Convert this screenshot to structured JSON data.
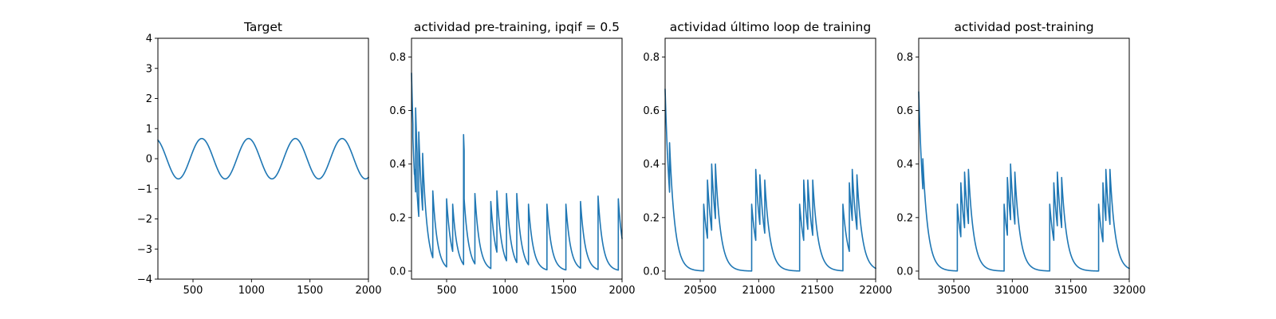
{
  "chart_data": [
    {
      "type": "line",
      "title": "Target",
      "xlim": [
        200,
        2000
      ],
      "ylim": [
        -4,
        4
      ],
      "xticks": [
        500,
        1000,
        1500,
        2000
      ],
      "xtick_labels": [
        "500",
        "1000",
        "1500",
        "2000"
      ],
      "yticks": [
        -4,
        -3,
        -2,
        -1,
        0,
        1,
        2,
        3,
        4
      ],
      "ytick_labels": [
        "−4",
        "−3",
        "−2",
        "−1",
        "0",
        "1",
        "2",
        "3",
        "4"
      ],
      "color": "#1f77b4",
      "series": [
        {
          "kind": "sine",
          "amplitude": 0.67,
          "period": 400,
          "phase_x": 175,
          "x_start": 200,
          "x_end": 2000
        }
      ]
    },
    {
      "type": "line",
      "title": "actividad pre-training, ipqif = 0.5",
      "xlim": [
        200,
        2000
      ],
      "ylim": [
        -0.03,
        0.87
      ],
      "xticks": [
        500,
        1000,
        1500,
        2000
      ],
      "xtick_labels": [
        "500",
        "1000",
        "1500",
        "2000"
      ],
      "yticks": [
        0,
        0.2,
        0.4,
        0.6,
        0.8
      ],
      "ytick_labels": [
        "0.0",
        "0.2",
        "0.4",
        "0.6",
        "0.8"
      ],
      "color": "#1f77b4",
      "series": [
        {
          "kind": "spikes",
          "x_start": 200,
          "x_end": 2000,
          "initial": 0.74,
          "tau": 40,
          "spikes": [
            [
              212,
              0.5
            ],
            [
              225,
              0.38
            ],
            [
              235,
              0.61
            ],
            [
              248,
              0.29
            ],
            [
              262,
              0.52
            ],
            [
              295,
              0.44
            ],
            [
              382,
              0.3
            ],
            [
              500,
              0.27
            ],
            [
              552,
              0.25
            ],
            [
              645,
              0.51
            ],
            [
              650,
              0.27
            ],
            [
              742,
              0.29
            ],
            [
              878,
              0.26
            ],
            [
              930,
              0.3
            ],
            [
              1012,
              0.29
            ],
            [
              1100,
              0.29
            ],
            [
              1200,
              0.25
            ],
            [
              1358,
              0.25
            ],
            [
              1520,
              0.25
            ],
            [
              1645,
              0.26
            ],
            [
              1795,
              0.28
            ],
            [
              1968,
              0.27
            ]
          ]
        }
      ]
    },
    {
      "type": "line",
      "title": "actividad último loop de training",
      "xlim": [
        20200,
        22000
      ],
      "ylim": [
        -0.03,
        0.87
      ],
      "xticks": [
        20500,
        21000,
        21500,
        22000
      ],
      "xtick_labels": [
        "20500",
        "21000",
        "21500",
        "22000"
      ],
      "yticks": [
        0,
        0.2,
        0.4,
        0.6,
        0.8
      ],
      "ytick_labels": [
        "0.0",
        "0.2",
        "0.4",
        "0.6",
        "0.8"
      ],
      "color": "#1f77b4",
      "series": [
        {
          "kind": "spikes",
          "x_start": 20200,
          "x_end": 22000,
          "initial": 0.68,
          "tau": 45,
          "spikes": [
            [
              20220,
              0.44
            ],
            [
              20238,
              0.48
            ],
            [
              20530,
              0.25
            ],
            [
              20562,
              0.34
            ],
            [
              20598,
              0.4
            ],
            [
              20630,
              0.4
            ],
            [
              20940,
              0.25
            ],
            [
              20975,
              0.38
            ],
            [
              21010,
              0.36
            ],
            [
              21052,
              0.34
            ],
            [
              21350,
              0.25
            ],
            [
              21385,
              0.34
            ],
            [
              21420,
              0.34
            ],
            [
              21462,
              0.34
            ],
            [
              21720,
              0.25
            ],
            [
              21775,
              0.33
            ],
            [
              21800,
              0.38
            ],
            [
              21840,
              0.36
            ]
          ]
        }
      ]
    },
    {
      "type": "line",
      "title": "actividad post-training",
      "xlim": [
        30200,
        32000
      ],
      "ylim": [
        -0.03,
        0.87
      ],
      "xticks": [
        30500,
        31000,
        31500,
        32000
      ],
      "xtick_labels": [
        "30500",
        "31000",
        "31500",
        "32000"
      ],
      "yticks": [
        0,
        0.2,
        0.4,
        0.6,
        0.8
      ],
      "ytick_labels": [
        "0.0",
        "0.2",
        "0.4",
        "0.6",
        "0.8"
      ],
      "color": "#1f77b4",
      "series": [
        {
          "kind": "spikes",
          "x_start": 30200,
          "x_end": 32000,
          "initial": 0.67,
          "tau": 45,
          "spikes": [
            [
              30235,
              0.42
            ],
            [
              30530,
              0.25
            ],
            [
              30560,
              0.33
            ],
            [
              30592,
              0.37
            ],
            [
              30625,
              0.38
            ],
            [
              30930,
              0.25
            ],
            [
              30958,
              0.35
            ],
            [
              30985,
              0.4
            ],
            [
              31022,
              0.37
            ],
            [
              31320,
              0.25
            ],
            [
              31355,
              0.33
            ],
            [
              31385,
              0.37
            ],
            [
              31422,
              0.35
            ],
            [
              31738,
              0.25
            ],
            [
              31775,
              0.33
            ],
            [
              31800,
              0.38
            ],
            [
              31835,
              0.38
            ]
          ]
        }
      ]
    }
  ]
}
